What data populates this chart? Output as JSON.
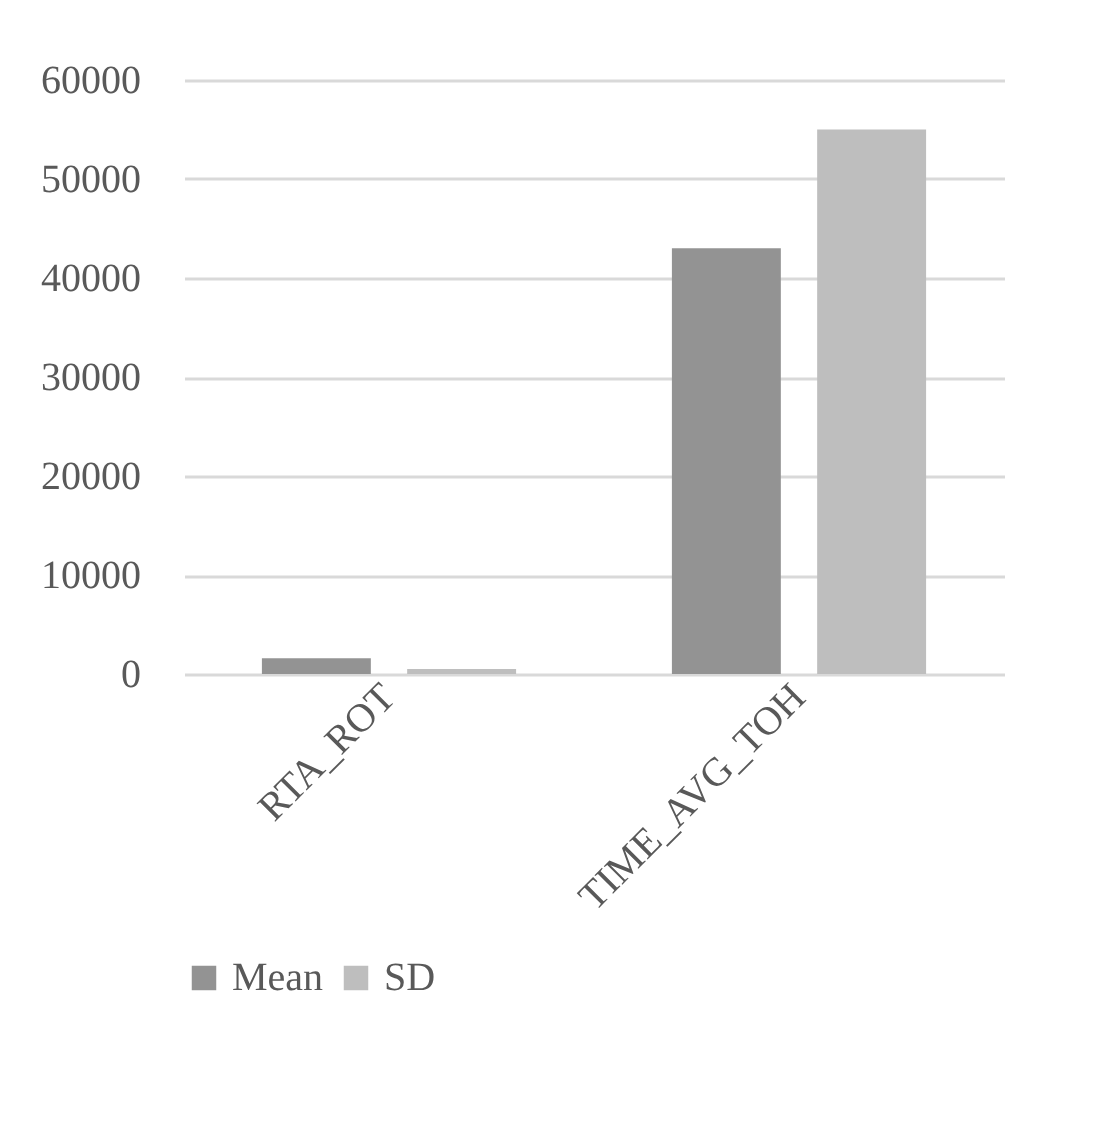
{
  "chart_data": {
    "type": "bar",
    "categories": [
      "RTA_ROT",
      "TIME_AVG_TOH"
    ],
    "series": [
      {
        "name": "Mean",
        "color": "#939393",
        "values": [
          1600,
          43000
        ]
      },
      {
        "name": "SD",
        "color": "#bebebe",
        "values": [
          500,
          55000
        ]
      }
    ],
    "ylim": [
      0,
      60000
    ],
    "yticks": [
      0,
      10000,
      20000,
      30000,
      40000,
      50000,
      60000
    ],
    "grid": "y",
    "legend": "bottom"
  }
}
